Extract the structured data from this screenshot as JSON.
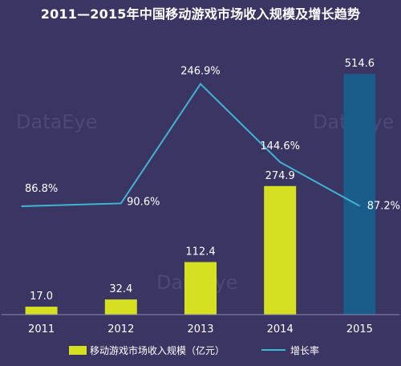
{
  "chart_data": {
    "type": "bar",
    "title": "2011—2015年中国移动游戏市场收入规模及增长趋势",
    "categories": [
      "2011",
      "2012",
      "2013",
      "2014",
      "2015"
    ],
    "series": [
      {
        "name": "移动游戏市场收入规模（亿元）",
        "type": "bar",
        "values": [
          17.0,
          32.4,
          112.4,
          274.9,
          514.6
        ],
        "labels": [
          "17.0",
          "32.4",
          "112.4",
          "274.9",
          "514.6"
        ]
      },
      {
        "name": "增长率",
        "type": "line",
        "values": [
          86.8,
          90.6,
          246.9,
          144.6,
          87.2
        ],
        "labels": [
          "86.8%",
          "90.6%",
          "246.9%",
          "144.6%",
          "87.2%"
        ]
      }
    ],
    "bar_ylim": [
      0,
      580
    ],
    "rate_ylim": [
      -55,
      300
    ],
    "grid": false,
    "legend_placement": "bottom",
    "colors": {
      "background": "#3b3564",
      "bar": "#d4e020",
      "bar_highlight": "#1a5d8a",
      "line": "#3fb5d3",
      "axis": "#8f8bb0",
      "text": "#ffffff"
    },
    "watermark": "DataEye"
  }
}
